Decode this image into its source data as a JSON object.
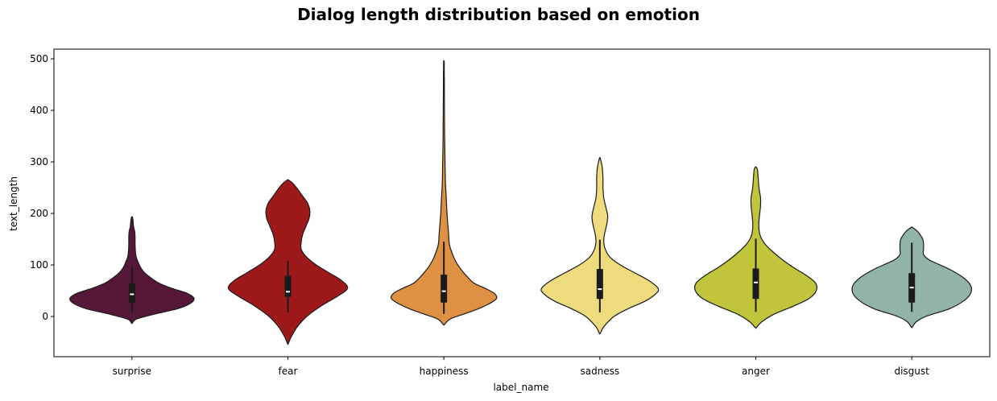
{
  "chart_data": {
    "type": "violin",
    "title": "Dialog length distribution based on emotion",
    "xlabel": "label_name",
    "ylabel": "text_length",
    "ylim": [
      -80,
      520
    ],
    "yticks": [
      0,
      100,
      200,
      300,
      400,
      500
    ],
    "categories": [
      "surprise",
      "fear",
      "happiness",
      "sadness",
      "anger",
      "disgust"
    ],
    "colors": [
      "#561839",
      "#9e1a1a",
      "#de9143",
      "#eedc7f",
      "#c0c53c",
      "#91b3aa"
    ],
    "violins": [
      {
        "category": "surprise",
        "min": -13,
        "max": 193,
        "profile": [
          [
            -13,
            0.5
          ],
          [
            -5,
            6
          ],
          [
            5,
            30
          ],
          [
            15,
            58
          ],
          [
            25,
            74
          ],
          [
            35,
            79
          ],
          [
            45,
            70
          ],
          [
            55,
            50
          ],
          [
            65,
            34
          ],
          [
            75,
            24
          ],
          [
            85,
            16
          ],
          [
            95,
            11
          ],
          [
            105,
            8
          ],
          [
            115,
            5.5
          ],
          [
            125,
            4.5
          ],
          [
            140,
            4
          ],
          [
            155,
            4
          ],
          [
            165,
            3.5
          ],
          [
            175,
            2
          ],
          [
            185,
            1.5
          ],
          [
            193,
            0.5
          ]
        ],
        "box": {
          "q1": 27,
          "median": 43,
          "q3": 64,
          "whisker_low": 7,
          "whisker_high": 97
        }
      },
      {
        "category": "fear",
        "min": -53,
        "max": 265,
        "profile": [
          [
            -53,
            0.5
          ],
          [
            -40,
            4
          ],
          [
            -20,
            12
          ],
          [
            0,
            24
          ],
          [
            20,
            42
          ],
          [
            40,
            64
          ],
          [
            55,
            76
          ],
          [
            70,
            68
          ],
          [
            85,
            52
          ],
          [
            100,
            36
          ],
          [
            115,
            24
          ],
          [
            130,
            17
          ],
          [
            145,
            17
          ],
          [
            160,
            19
          ],
          [
            175,
            23
          ],
          [
            190,
            27
          ],
          [
            205,
            28
          ],
          [
            220,
            25
          ],
          [
            235,
            18
          ],
          [
            250,
            11
          ],
          [
            260,
            5
          ],
          [
            265,
            0.5
          ]
        ],
        "box": {
          "q1": 38,
          "median": 48,
          "q3": 79,
          "whisker_low": 8,
          "whisker_high": 108
        }
      },
      {
        "category": "happiness",
        "min": -16,
        "max": 493,
        "profile": [
          [
            -16,
            0.5
          ],
          [
            -5,
            8
          ],
          [
            5,
            26
          ],
          [
            15,
            44
          ],
          [
            25,
            58
          ],
          [
            35,
            67
          ],
          [
            45,
            64
          ],
          [
            55,
            52
          ],
          [
            65,
            38
          ],
          [
            80,
            28
          ],
          [
            95,
            20
          ],
          [
            110,
            14
          ],
          [
            125,
            10
          ],
          [
            140,
            7
          ],
          [
            160,
            6
          ],
          [
            180,
            5
          ],
          [
            200,
            4
          ],
          [
            230,
            3
          ],
          [
            260,
            2
          ],
          [
            300,
            1.5
          ],
          [
            350,
            1
          ],
          [
            400,
            0.8
          ],
          [
            450,
            0.6
          ],
          [
            493,
            0.4
          ]
        ],
        "box": {
          "q1": 27,
          "median": 49,
          "q3": 81,
          "whisker_low": 5,
          "whisker_high": 145
        }
      },
      {
        "category": "sadness",
        "min": -33,
        "max": 307,
        "profile": [
          [
            -33,
            0.5
          ],
          [
            -20,
            5
          ],
          [
            0,
            18
          ],
          [
            15,
            36
          ],
          [
            30,
            58
          ],
          [
            45,
            72
          ],
          [
            55,
            74
          ],
          [
            70,
            62
          ],
          [
            85,
            44
          ],
          [
            100,
            26
          ],
          [
            115,
            13
          ],
          [
            130,
            7
          ],
          [
            145,
            5
          ],
          [
            160,
            6
          ],
          [
            180,
            9
          ],
          [
            195,
            10
          ],
          [
            210,
            8
          ],
          [
            230,
            5
          ],
          [
            250,
            4
          ],
          [
            270,
            4
          ],
          [
            290,
            3
          ],
          [
            307,
            0.5
          ]
        ],
        "box": {
          "q1": 34,
          "median": 53,
          "q3": 92,
          "whisker_low": 8,
          "whisker_high": 149
        }
      },
      {
        "category": "anger",
        "min": -22,
        "max": 290,
        "profile": [
          [
            -22,
            0.5
          ],
          [
            -10,
            8
          ],
          [
            5,
            24
          ],
          [
            20,
            48
          ],
          [
            35,
            68
          ],
          [
            50,
            77
          ],
          [
            65,
            76
          ],
          [
            80,
            64
          ],
          [
            95,
            48
          ],
          [
            110,
            34
          ],
          [
            125,
            22
          ],
          [
            140,
            12
          ],
          [
            155,
            6
          ],
          [
            170,
            4
          ],
          [
            185,
            4
          ],
          [
            200,
            5
          ],
          [
            215,
            6
          ],
          [
            230,
            6
          ],
          [
            250,
            4
          ],
          [
            270,
            3
          ],
          [
            285,
            2
          ],
          [
            290,
            0.5
          ]
        ],
        "box": {
          "q1": 34,
          "median": 66,
          "q3": 93,
          "whisker_low": 9,
          "whisker_high": 151
        }
      },
      {
        "category": "disgust",
        "min": -21,
        "max": 173,
        "profile": [
          [
            -21,
            0.5
          ],
          [
            -10,
            6
          ],
          [
            0,
            18
          ],
          [
            15,
            48
          ],
          [
            30,
            66
          ],
          [
            45,
            75
          ],
          [
            60,
            75
          ],
          [
            75,
            66
          ],
          [
            90,
            50
          ],
          [
            100,
            36
          ],
          [
            110,
            22
          ],
          [
            120,
            15
          ],
          [
            130,
            15
          ],
          [
            140,
            15
          ],
          [
            150,
            14
          ],
          [
            160,
            10
          ],
          [
            167,
            6
          ],
          [
            173,
            0.5
          ]
        ],
        "box": {
          "q1": 27,
          "median": 56,
          "q3": 84,
          "whisker_low": 9,
          "whisker_high": 143
        }
      }
    ]
  }
}
